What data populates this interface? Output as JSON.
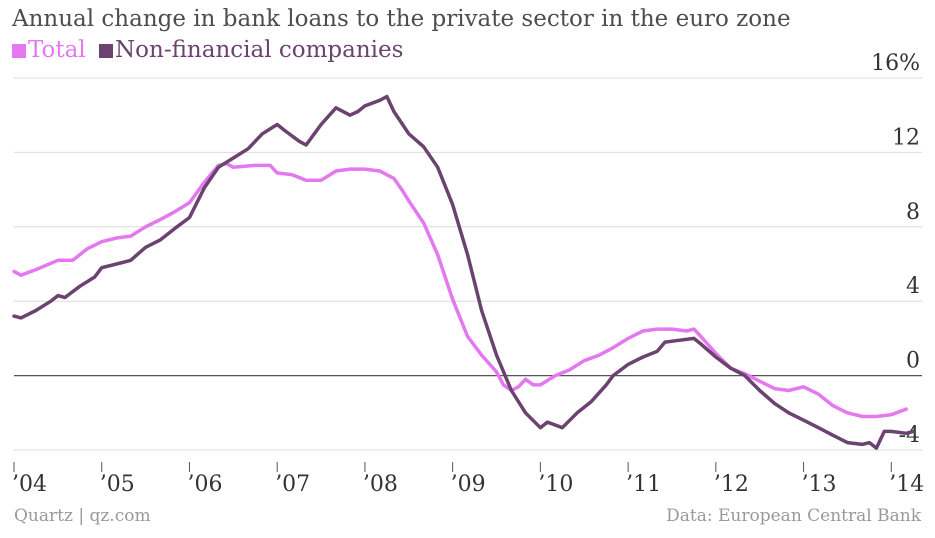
{
  "header": {
    "title": "Annual change in bank loans to the private sector in the euro zone"
  },
  "footer": {
    "source_left": "Quartz | qz.com",
    "source_right": "Data: European Central Bank"
  },
  "chart_data": {
    "type": "line",
    "title": "Annual change in bank loans to the private sector in the euro zone",
    "xlabel": "",
    "ylabel": "",
    "xlim": [
      2004.0,
      2014.35
    ],
    "ylim": [
      -4,
      16
    ],
    "y_unit": "%",
    "x_ticks": [
      {
        "value": 2004,
        "label": "’04"
      },
      {
        "value": 2005,
        "label": "’05"
      },
      {
        "value": 2006,
        "label": "’06"
      },
      {
        "value": 2007,
        "label": "’07"
      },
      {
        "value": 2008,
        "label": "’08"
      },
      {
        "value": 2009,
        "label": "’09"
      },
      {
        "value": 2010,
        "label": "’10"
      },
      {
        "value": 2011,
        "label": "’11"
      },
      {
        "value": 2012,
        "label": "’12"
      },
      {
        "value": 2013,
        "label": "’13"
      },
      {
        "value": 2014,
        "label": "’14"
      }
    ],
    "y_ticks": [
      {
        "value": 16,
        "label": "16%"
      },
      {
        "value": 12,
        "label": "12"
      },
      {
        "value": 8,
        "label": "8"
      },
      {
        "value": 4,
        "label": "4"
      },
      {
        "value": 0,
        "label": "0"
      },
      {
        "value": -4,
        "label": "-4"
      }
    ],
    "grid": true,
    "legend_position": "top-left",
    "series": [
      {
        "name": "Total",
        "color": "#e478f0",
        "points": [
          [
            2004.0,
            5.6
          ],
          [
            2004.08,
            5.4
          ],
          [
            2004.25,
            5.7
          ],
          [
            2004.5,
            6.2
          ],
          [
            2004.67,
            6.2
          ],
          [
            2004.83,
            6.8
          ],
          [
            2005.0,
            7.2
          ],
          [
            2005.17,
            7.4
          ],
          [
            2005.33,
            7.5
          ],
          [
            2005.5,
            8.0
          ],
          [
            2005.67,
            8.4
          ],
          [
            2005.83,
            8.8
          ],
          [
            2006.0,
            9.3
          ],
          [
            2006.17,
            10.4
          ],
          [
            2006.33,
            11.3
          ],
          [
            2006.42,
            11.4
          ],
          [
            2006.5,
            11.2
          ],
          [
            2006.75,
            11.3
          ],
          [
            2006.92,
            11.3
          ],
          [
            2007.0,
            10.9
          ],
          [
            2007.17,
            10.8
          ],
          [
            2007.33,
            10.5
          ],
          [
            2007.5,
            10.5
          ],
          [
            2007.67,
            11.0
          ],
          [
            2007.83,
            11.1
          ],
          [
            2008.0,
            11.1
          ],
          [
            2008.17,
            11.0
          ],
          [
            2008.33,
            10.6
          ],
          [
            2008.42,
            10.0
          ],
          [
            2008.5,
            9.4
          ],
          [
            2008.67,
            8.2
          ],
          [
            2008.83,
            6.5
          ],
          [
            2009.0,
            4.1
          ],
          [
            2009.17,
            2.1
          ],
          [
            2009.33,
            1.1
          ],
          [
            2009.5,
            0.2
          ],
          [
            2009.58,
            -0.5
          ],
          [
            2009.67,
            -0.8
          ],
          [
            2009.75,
            -0.6
          ],
          [
            2009.83,
            -0.2
          ],
          [
            2009.92,
            -0.5
          ],
          [
            2010.0,
            -0.5
          ],
          [
            2010.17,
            0.0
          ],
          [
            2010.33,
            0.3
          ],
          [
            2010.5,
            0.8
          ],
          [
            2010.67,
            1.1
          ],
          [
            2010.83,
            1.5
          ],
          [
            2011.0,
            2.0
          ],
          [
            2011.17,
            2.4
          ],
          [
            2011.33,
            2.5
          ],
          [
            2011.5,
            2.5
          ],
          [
            2011.67,
            2.4
          ],
          [
            2011.75,
            2.5
          ],
          [
            2011.83,
            2.1
          ],
          [
            2012.0,
            1.2
          ],
          [
            2012.17,
            0.4
          ],
          [
            2012.33,
            0.1
          ],
          [
            2012.5,
            -0.3
          ],
          [
            2012.67,
            -0.7
          ],
          [
            2012.83,
            -0.8
          ],
          [
            2013.0,
            -0.6
          ],
          [
            2013.17,
            -1.0
          ],
          [
            2013.33,
            -1.6
          ],
          [
            2013.5,
            -2.0
          ],
          [
            2013.67,
            -2.2
          ],
          [
            2013.83,
            -2.2
          ],
          [
            2014.0,
            -2.1
          ],
          [
            2014.17,
            -1.8
          ]
        ]
      },
      {
        "name": "Non-financial companies",
        "color": "#6b4270",
        "points": [
          [
            2004.0,
            3.2
          ],
          [
            2004.08,
            3.1
          ],
          [
            2004.25,
            3.5
          ],
          [
            2004.42,
            4.0
          ],
          [
            2004.5,
            4.3
          ],
          [
            2004.58,
            4.2
          ],
          [
            2004.75,
            4.8
          ],
          [
            2004.92,
            5.3
          ],
          [
            2005.0,
            5.8
          ],
          [
            2005.17,
            6.0
          ],
          [
            2005.33,
            6.2
          ],
          [
            2005.5,
            6.9
          ],
          [
            2005.67,
            7.3
          ],
          [
            2005.83,
            7.9
          ],
          [
            2006.0,
            8.5
          ],
          [
            2006.17,
            10.1
          ],
          [
            2006.33,
            11.2
          ],
          [
            2006.5,
            11.7
          ],
          [
            2006.67,
            12.2
          ],
          [
            2006.83,
            13.0
          ],
          [
            2007.0,
            13.5
          ],
          [
            2007.08,
            13.2
          ],
          [
            2007.25,
            12.6
          ],
          [
            2007.33,
            12.4
          ],
          [
            2007.5,
            13.5
          ],
          [
            2007.67,
            14.4
          ],
          [
            2007.83,
            14.0
          ],
          [
            2007.92,
            14.2
          ],
          [
            2008.0,
            14.5
          ],
          [
            2008.17,
            14.8
          ],
          [
            2008.25,
            15.0
          ],
          [
            2008.33,
            14.2
          ],
          [
            2008.5,
            13.0
          ],
          [
            2008.67,
            12.3
          ],
          [
            2008.83,
            11.2
          ],
          [
            2009.0,
            9.2
          ],
          [
            2009.17,
            6.5
          ],
          [
            2009.33,
            3.5
          ],
          [
            2009.5,
            1.1
          ],
          [
            2009.67,
            -0.8
          ],
          [
            2009.83,
            -2.0
          ],
          [
            2010.0,
            -2.8
          ],
          [
            2010.08,
            -2.5
          ],
          [
            2010.25,
            -2.8
          ],
          [
            2010.42,
            -2.0
          ],
          [
            2010.58,
            -1.4
          ],
          [
            2010.75,
            -0.5
          ],
          [
            2010.83,
            0.0
          ],
          [
            2011.0,
            0.6
          ],
          [
            2011.17,
            1.0
          ],
          [
            2011.33,
            1.3
          ],
          [
            2011.42,
            1.8
          ],
          [
            2011.58,
            1.9
          ],
          [
            2011.75,
            2.0
          ],
          [
            2011.83,
            1.7
          ],
          [
            2012.0,
            1.0
          ],
          [
            2012.17,
            0.4
          ],
          [
            2012.33,
            0.0
          ],
          [
            2012.5,
            -0.8
          ],
          [
            2012.67,
            -1.5
          ],
          [
            2012.83,
            -2.0
          ],
          [
            2013.0,
            -2.4
          ],
          [
            2013.17,
            -2.8
          ],
          [
            2013.33,
            -3.2
          ],
          [
            2013.5,
            -3.6
          ],
          [
            2013.67,
            -3.7
          ],
          [
            2013.75,
            -3.6
          ],
          [
            2013.83,
            -3.9
          ],
          [
            2013.92,
            -3.0
          ],
          [
            2014.0,
            -3.0
          ],
          [
            2014.17,
            -3.1
          ],
          [
            2014.25,
            -3.0
          ]
        ]
      }
    ]
  }
}
